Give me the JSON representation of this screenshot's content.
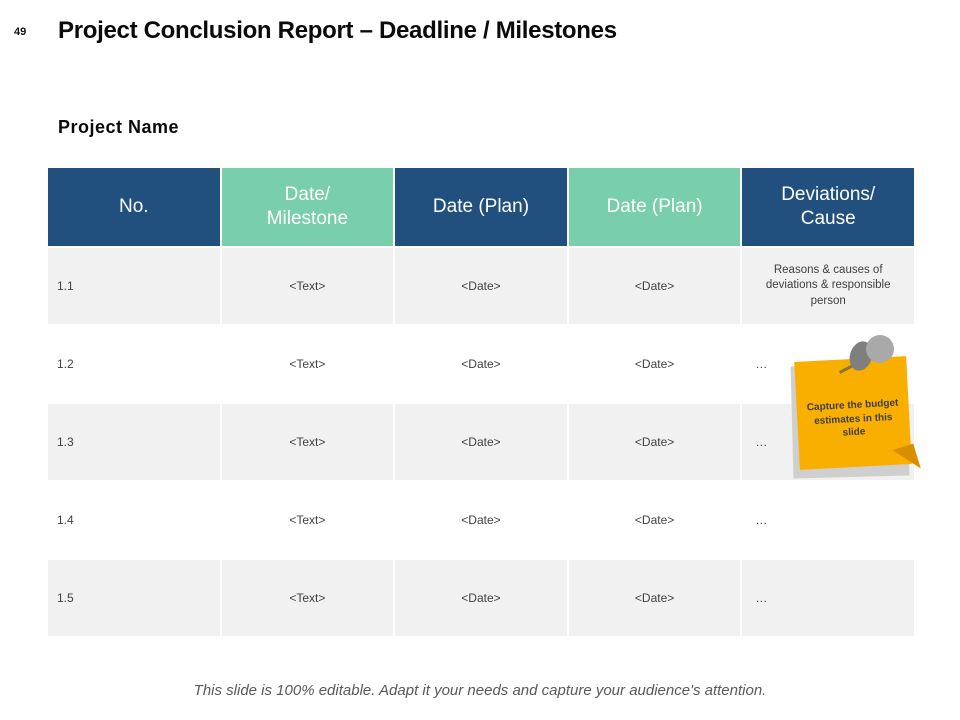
{
  "slide": {
    "page_number": "49",
    "title": "Project Conclusion Report – Deadline / Milestones",
    "subtitle": "Project Name",
    "footer": "This slide is 100% editable. Adapt it your needs and capture your audience's attention."
  },
  "colors": {
    "header_blue": "#22507E",
    "header_teal": "#79CEAB",
    "row_gray": "#F1F1F2",
    "note_yellow": "#F9AF00",
    "cell_text": "#404040",
    "footer_text": "#595959"
  },
  "table": {
    "columns": [
      {
        "label": "No.",
        "color": "blue"
      },
      {
        "label": "Date/\nMilestone",
        "color": "teal"
      },
      {
        "label": "Date (Plan)",
        "color": "blue"
      },
      {
        "label": "Date (Plan)",
        "color": "teal"
      },
      {
        "label": "Deviations/\nCause",
        "color": "blue"
      }
    ],
    "rows": [
      [
        "1.1",
        "<Text>",
        "<Date>",
        "<Date>",
        "Reasons & causes of deviations & responsible person"
      ],
      [
        "1.2",
        "<Text>",
        "<Date>",
        "<Date>",
        "…"
      ],
      [
        "1.3",
        "<Text>",
        "<Date>",
        "<Date>",
        "…"
      ],
      [
        "1.4",
        "<Text>",
        "<Date>",
        "<Date>",
        "…"
      ],
      [
        "1.5",
        "<Text>",
        "<Date>",
        "<Date>",
        "…"
      ]
    ]
  },
  "sticky_note": {
    "text": "Capture the budget estimates in this slide"
  }
}
